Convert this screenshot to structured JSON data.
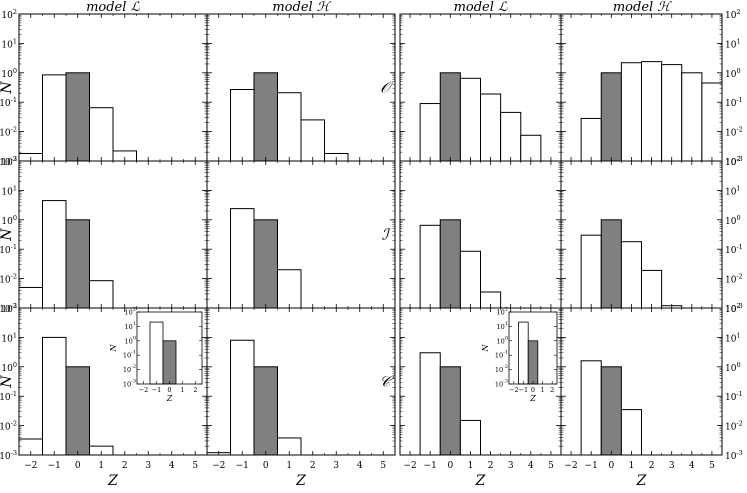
{
  "chart_data": {
    "type": "bar",
    "title": "",
    "xlabel": "Z",
    "ylabel": "N",
    "yscale": "log",
    "ylim": [
      0.001,
      100
    ],
    "xlim": [
      -2.5,
      5.5
    ],
    "x_ticks": [
      -2,
      -1,
      0,
      1,
      2,
      3,
      4,
      5
    ],
    "y_tick_labels": [
      {
        "base": "10",
        "exp": "2"
      },
      {
        "base": "10",
        "exp": "1"
      },
      {
        "base": "10",
        "exp": "0"
      },
      {
        "base": "10",
        "exp": "-1"
      },
      {
        "base": "10",
        "exp": "-2"
      },
      {
        "base": "10",
        "exp": "-3"
      }
    ],
    "column_titles": [
      "model ℒ",
      "model ℋ",
      "model ℒ",
      "model ℋ"
    ],
    "row_labels": [
      "𝒪",
      "ℐ",
      "𝒞"
    ],
    "highlight_bin": 0,
    "highlight_color": "#808080",
    "panels": [
      {
        "row": 0,
        "col": 0,
        "bins": [
          -2,
          -1,
          0,
          1,
          2
        ],
        "values": [
          0.0018,
          0.85,
          1.0,
          0.065,
          0.0022
        ]
      },
      {
        "row": 0,
        "col": 1,
        "bins": [
          -1,
          0,
          1,
          2,
          3
        ],
        "values": [
          0.27,
          1.0,
          0.21,
          0.025,
          0.0018
        ]
      },
      {
        "row": 0,
        "col": 2,
        "bins": [
          -1,
          0,
          1,
          2,
          3,
          4
        ],
        "values": [
          0.09,
          1.0,
          0.65,
          0.19,
          0.045,
          0.0075
        ]
      },
      {
        "row": 0,
        "col": 3,
        "bins": [
          -1,
          0,
          1,
          2,
          3,
          4,
          5
        ],
        "values": [
          0.028,
          1.0,
          2.2,
          2.4,
          1.9,
          1.0,
          0.45
        ]
      },
      {
        "row": 1,
        "col": 0,
        "bins": [
          -2,
          -1,
          0,
          1
        ],
        "values": [
          0.005,
          4.5,
          1.0,
          0.0085
        ]
      },
      {
        "row": 1,
        "col": 1,
        "bins": [
          -1,
          0,
          1
        ],
        "values": [
          2.4,
          1.0,
          0.02
        ]
      },
      {
        "row": 1,
        "col": 2,
        "bins": [
          -1,
          0,
          1,
          2
        ],
        "values": [
          0.65,
          1.0,
          0.085,
          0.0035
        ]
      },
      {
        "row": 1,
        "col": 3,
        "bins": [
          -1,
          0,
          1,
          2,
          3
        ],
        "values": [
          0.3,
          1.0,
          0.18,
          0.019,
          0.0012
        ]
      },
      {
        "row": 2,
        "col": 0,
        "bins": [
          -2,
          -1,
          0,
          1
        ],
        "values": [
          0.0035,
          10,
          1.0,
          0.002
        ]
      },
      {
        "row": 2,
        "col": 1,
        "bins": [
          -2,
          -1,
          0,
          1
        ],
        "values": [
          0.0012,
          8,
          1.0,
          0.0038
        ]
      },
      {
        "row": 2,
        "col": 2,
        "bins": [
          -1,
          0,
          1
        ],
        "values": [
          3.0,
          1.0,
          0.015
        ]
      },
      {
        "row": 2,
        "col": 3,
        "bins": [
          -1,
          0,
          1
        ],
        "values": [
          1.6,
          1.0,
          0.035
        ]
      }
    ],
    "insets": [
      {
        "row": 2,
        "col": 0,
        "bins": [
          -1,
          0
        ],
        "values": [
          20,
          1.0
        ],
        "x_ticks": [
          -2,
          -1,
          0,
          1,
          2
        ]
      },
      {
        "row": 2,
        "col": 2,
        "bins": [
          -1,
          0
        ],
        "values": [
          20,
          1.0
        ],
        "x_ticks": [
          -2,
          -1,
          0,
          1,
          2
        ]
      }
    ]
  }
}
